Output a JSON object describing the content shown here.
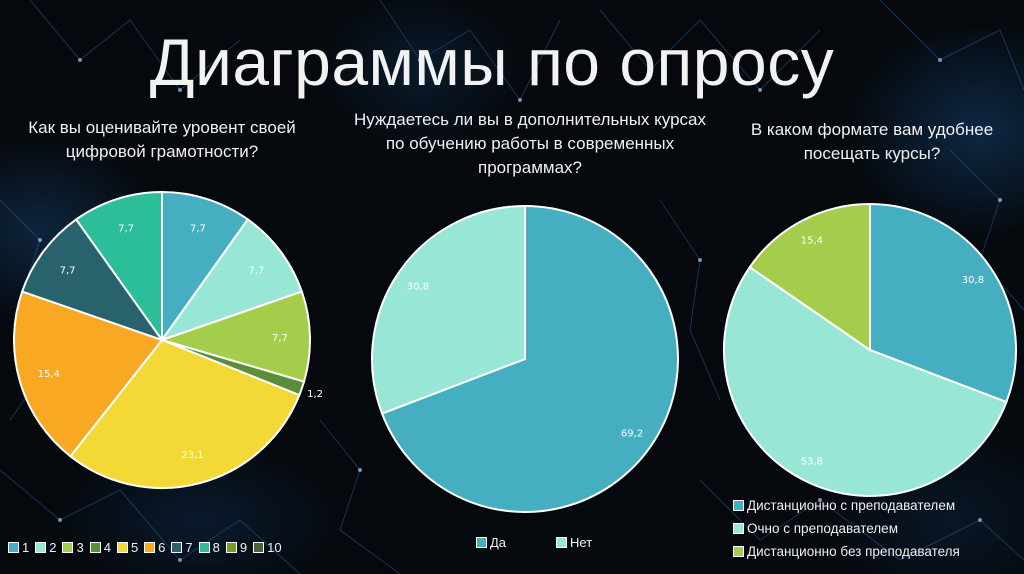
{
  "page": {
    "title": "Диаграммы по опросу"
  },
  "colors": {
    "background": "#05080c",
    "slice_border": "#ffffff",
    "text": "#ffffff"
  },
  "chart_data": [
    {
      "type": "pie",
      "title": "Как вы оценивайте уровент своей цифровой грамотности?",
      "categories": [
        "1",
        "2",
        "3",
        "4",
        "5",
        "6",
        "7",
        "8",
        "9",
        "10"
      ],
      "values": [
        7.7,
        7.7,
        7.7,
        1.2,
        23.1,
        15.4,
        7.7,
        7.7,
        0,
        0
      ],
      "labels": [
        "7,7",
        "7,7",
        "7,7",
        "1,2",
        "23,1",
        "15,4",
        "7,7",
        "7,7",
        "",
        ""
      ],
      "colors": [
        "#45AEC0",
        "#97E6D6",
        "#A3CD4A",
        "#5A8E3A",
        "#F3D836",
        "#F8A823",
        "#27626D",
        "#2BBE98",
        "#7A9A2E",
        "#46633A"
      ],
      "legend_position": "bottom",
      "start_angle": 0,
      "direction": "clockwise"
    },
    {
      "type": "pie",
      "title": "Нуждаетесь ли вы в дополнительных курсах по обучению работы в современных программах?",
      "categories": [
        "Да",
        "Нет"
      ],
      "values": [
        69.2,
        30.8
      ],
      "labels": [
        "69,2",
        "30,8"
      ],
      "colors": [
        "#45AEC0",
        "#97E6D6"
      ],
      "legend_position": "bottom",
      "start_angle": 0,
      "direction": "clockwise"
    },
    {
      "type": "pie",
      "title": "В каком формате вам удобнее посещать курсы?",
      "categories": [
        "Дистанционно с преподавателем",
        "Очно с преподавателем",
        "Дистанционно без преподавателя"
      ],
      "values": [
        30.8,
        53.8,
        15.4
      ],
      "labels": [
        "30,8",
        "53,8",
        "15,4"
      ],
      "colors": [
        "#45AEC0",
        "#97E6D6",
        "#A3CD4A"
      ],
      "legend_position": "bottom-right",
      "start_angle": 0,
      "direction": "clockwise"
    }
  ],
  "charts": {
    "c1": {
      "title_line1": "Как вы оценивайте уровент своей",
      "title_line2": "цифровой грамотности?",
      "legend": [
        "1",
        "2",
        "3",
        "4",
        "5",
        "6",
        "7",
        "8",
        "9",
        "10"
      ]
    },
    "c2": {
      "title_line1": "Нуждаетесь ли вы в дополнительных курсах",
      "title_line2": "по обучению работы в современных",
      "title_line3": "программах?",
      "legend": [
        "Да",
        "Нет"
      ]
    },
    "c3": {
      "title_line1": "В каком формате вам удобнее",
      "title_line2": "посещать курсы?",
      "legend": [
        "Дистанционно с преподавателем",
        "Очно с преподавателем",
        "Дистанционно без преподавателя"
      ]
    }
  }
}
